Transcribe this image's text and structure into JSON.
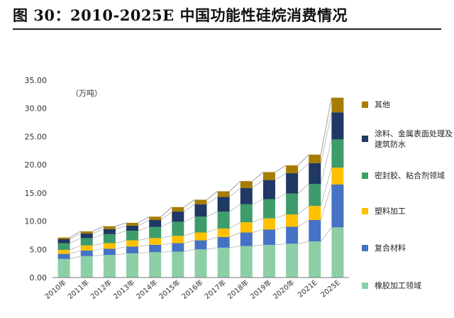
{
  "figure_title": "图 30：2010-2025E 中国功能性硅烷消费情况",
  "chart_data": {
    "type": "bar",
    "stacked": true,
    "unit_label": "（万吨）",
    "categories": [
      "2010年",
      "2011年",
      "2012年",
      "2013年",
      "2014年",
      "2015年",
      "2016年",
      "2017年",
      "2018年",
      "2019年",
      "2020年",
      "2021E",
      "2025E"
    ],
    "ylim": [
      0,
      35
    ],
    "yticks": [
      "0.00",
      "5.00",
      "10.00",
      "15.00",
      "20.00",
      "25.00",
      "30.00",
      "35.00"
    ],
    "grid": false,
    "connector_lines": true,
    "legend_position": "right",
    "series": [
      {
        "name": "橡胶加工领域",
        "color": "#8ccfa6",
        "values": [
          3.3,
          3.8,
          4.0,
          4.3,
          4.5,
          4.6,
          5.0,
          5.3,
          5.6,
          5.8,
          6.0,
          6.4,
          8.9
        ]
      },
      {
        "name": "复合材料",
        "color": "#4472c4",
        "values": [
          0.9,
          1.0,
          1.1,
          1.2,
          1.3,
          1.5,
          1.6,
          1.9,
          2.4,
          2.7,
          3.0,
          3.8,
          7.6
        ]
      },
      {
        "name": "塑料加工",
        "color": "#ffc000",
        "values": [
          0.7,
          0.9,
          1.0,
          1.1,
          1.2,
          1.3,
          1.4,
          1.5,
          1.8,
          2.0,
          2.2,
          2.5,
          3.0
        ]
      },
      {
        "name": "密封胶、粘合剂领域",
        "color": "#3d9c6a",
        "values": [
          1.2,
          1.3,
          1.6,
          1.7,
          2.0,
          2.5,
          2.8,
          3.0,
          3.2,
          3.4,
          3.7,
          3.9,
          5.0
        ]
      },
      {
        "name": "涂料、金属表面处理及建筑防水",
        "color": "#1f3864",
        "values": [
          0.7,
          0.8,
          0.9,
          0.9,
          1.2,
          1.8,
          2.2,
          2.6,
          2.9,
          3.4,
          3.6,
          3.7,
          4.8
        ]
      },
      {
        "name": "其他",
        "color": "#a67c00",
        "values": [
          0.3,
          0.4,
          0.5,
          0.5,
          0.6,
          0.8,
          0.8,
          1.0,
          1.2,
          1.4,
          1.4,
          1.5,
          2.6
        ]
      }
    ]
  }
}
